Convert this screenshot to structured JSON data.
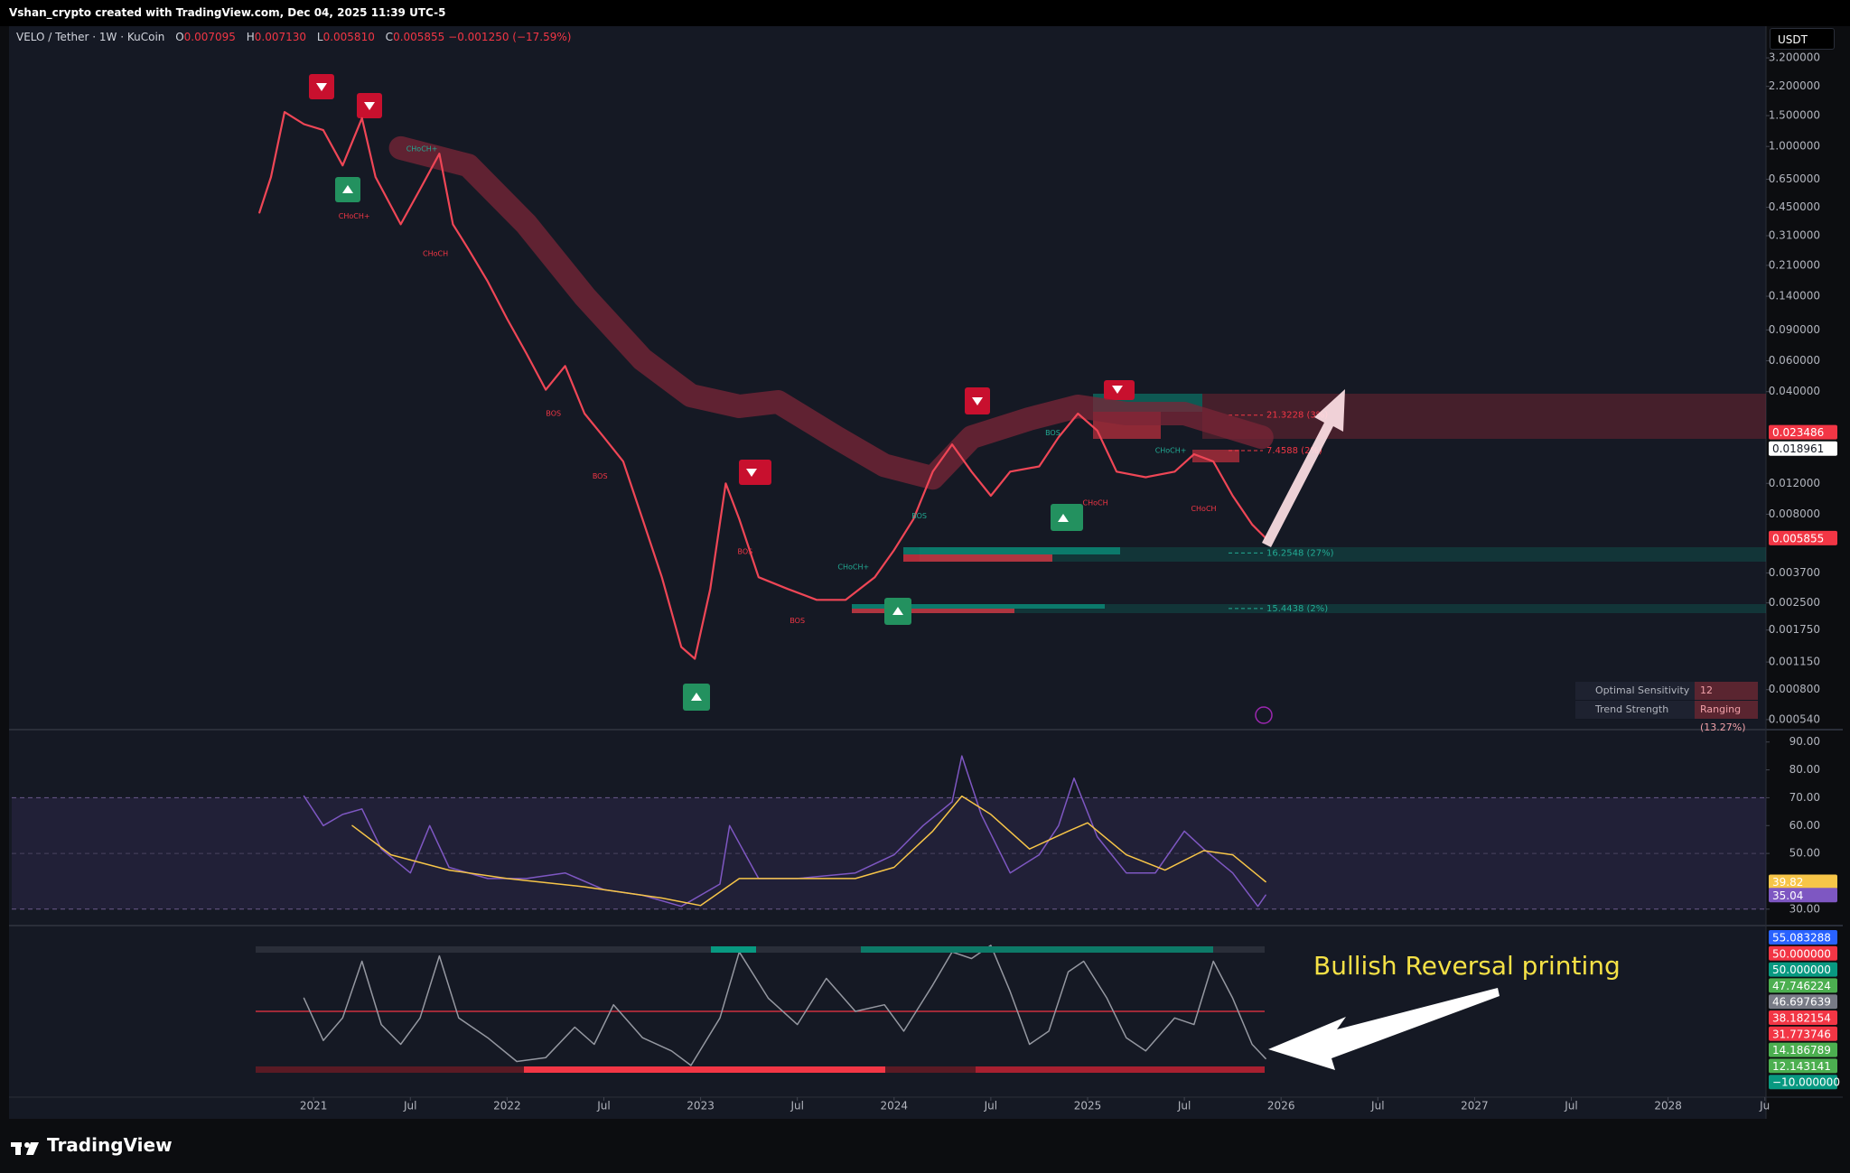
{
  "header": {
    "attribution": "Vshan_crypto created with TradingView.com, Dec 04, 2025 11:39 UTC-5",
    "symbol": "VELO / Tether · 1W · KuCoin",
    "ohlc": [
      {
        "key": "O",
        "value": "0.007095"
      },
      {
        "key": "H",
        "value": "0.007130"
      },
      {
        "key": "L",
        "value": "0.005810"
      },
      {
        "key": "C",
        "value": "0.005855"
      }
    ],
    "change": "−0.001250 (−17.59%)",
    "currency": "USDT"
  },
  "chart_data": [
    {
      "type": "line",
      "log_scale": true,
      "xlim": [
        2019.44,
        2028.506
      ],
      "ylim": [
        0.000479,
        4.85
      ],
      "yticks": [
        {
          "value": 3.2,
          "label": "3.200000"
        },
        {
          "value": 2.2,
          "label": "2.200000"
        },
        {
          "value": 1.5,
          "label": "1.500000"
        },
        {
          "value": 1.0,
          "label": "1.000000"
        },
        {
          "value": 0.65,
          "label": "0.650000"
        },
        {
          "value": 0.45,
          "label": "0.450000"
        },
        {
          "value": 0.31,
          "label": "0.310000"
        },
        {
          "value": 0.21,
          "label": "0.210000"
        },
        {
          "value": 0.14,
          "label": "0.140000"
        },
        {
          "value": 0.09,
          "label": "0.090000"
        },
        {
          "value": 0.06,
          "label": "0.060000"
        },
        {
          "value": 0.04,
          "label": "0.040000"
        },
        {
          "value": 0.012,
          "label": "0.012000"
        },
        {
          "value": 0.008,
          "label": "0.008000"
        },
        {
          "value": 0.0037,
          "label": "0.003700"
        },
        {
          "value": 0.0025,
          "label": "0.002500"
        },
        {
          "value": 0.00175,
          "label": "0.001750"
        },
        {
          "value": 0.00115,
          "label": "0.001150"
        },
        {
          "value": 0.0008,
          "label": "0.000800"
        },
        {
          "value": 0.00054,
          "label": "0.000540"
        }
      ],
      "series": [
        {
          "color": "#7a2637",
          "x": [
            2021.45,
            2021.8,
            2022.1,
            2022.4,
            2022.7,
            2022.95,
            2023.2,
            2023.4,
            2023.7,
            2023.95,
            2024.2,
            2024.4,
            2024.7,
            2024.95,
            2025.2,
            2025.5,
            2025.9
          ],
          "values": [
            0.98,
            0.78,
            0.36,
            0.14,
            0.061,
            0.038,
            0.033,
            0.035,
            0.022,
            0.0152,
            0.0129,
            0.022,
            0.028,
            0.033,
            0.03,
            0.03,
            0.022
          ]
        },
        {
          "color": "#ef4656",
          "x": [
            2020.72,
            2020.78,
            2020.85,
            2020.95,
            2021.05,
            2021.15,
            2021.25,
            2021.32,
            2021.45,
            2021.55,
            2021.65,
            2021.72,
            2021.8,
            2021.9,
            2022.0,
            2022.1,
            2022.2,
            2022.3,
            2022.4,
            2022.5,
            2022.6,
            2022.7,
            2022.8,
            2022.9,
            2022.97,
            2023.05,
            2023.13,
            2023.2,
            2023.3,
            2023.45,
            2023.6,
            2023.75,
            2023.9,
            2024.0,
            2024.1,
            2024.2,
            2024.3,
            2024.4,
            2024.5,
            2024.6,
            2024.75,
            2024.85,
            2024.95,
            2025.05,
            2025.15,
            2025.3,
            2025.45,
            2025.55,
            2025.65,
            2025.75,
            2025.85,
            2025.92
          ],
          "values": [
            0.42,
            0.67,
            1.57,
            1.34,
            1.24,
            0.78,
            1.45,
            0.67,
            0.36,
            0.57,
            0.91,
            0.36,
            0.26,
            0.17,
            0.104,
            0.066,
            0.041,
            0.056,
            0.03,
            0.022,
            0.016,
            0.0075,
            0.0035,
            0.0014,
            0.0012,
            0.003,
            0.012,
            0.0075,
            0.0035,
            0.003,
            0.0026,
            0.0026,
            0.0035,
            0.005,
            0.0075,
            0.014,
            0.02,
            0.014,
            0.0102,
            0.014,
            0.015,
            0.022,
            0.03,
            0.024,
            0.014,
            0.013,
            0.014,
            0.0176,
            0.016,
            0.0102,
            0.007,
            0.005855
          ]
        }
      ],
      "last_value_tags": [
        {
          "value": 0.023486,
          "label": "0.023486",
          "color": "#f23645"
        },
        {
          "value": 0.018961,
          "label": "0.018961",
          "color": "#ffffff"
        },
        {
          "value": 0.005855,
          "label": "0.005855",
          "color": "#f23645"
        }
      ],
      "levels": [
        {
          "price": 0.0294,
          "label": "21.3228 (3%)",
          "color": "#f23645"
        },
        {
          "price": 0.01845,
          "label": "7.4588 (2%)",
          "color": "#f23645"
        },
        {
          "price": 0.00481,
          "label": "16.2548 (27%)",
          "color": "#22ab94"
        },
        {
          "price": 0.00232,
          "label": "15.4438 (2%)",
          "color": "#22ab94"
        }
      ],
      "annotations": [
        {
          "text": "CHoCH+",
          "x": 2021.21,
          "price": 0.4,
          "color": "#f23645"
        },
        {
          "text": "CHoCH+",
          "x": 2021.56,
          "price": 0.97,
          "color": "#22ab94"
        },
        {
          "text": "CHoCH",
          "x": 2021.63,
          "price": 0.245,
          "color": "#f23645"
        },
        {
          "text": "BOS",
          "x": 2022.24,
          "price": 0.03,
          "color": "#f23645"
        },
        {
          "text": "BOS",
          "x": 2022.48,
          "price": 0.0132,
          "color": "#f23645"
        },
        {
          "text": "BOS",
          "x": 2023.23,
          "price": 0.0049,
          "color": "#f23645"
        },
        {
          "text": "BOS",
          "x": 2023.5,
          "price": 0.00197,
          "color": "#f23645"
        },
        {
          "text": "CHoCH+",
          "x": 2023.79,
          "price": 0.004,
          "color": "#22ab94"
        },
        {
          "text": "BOS",
          "x": 2024.13,
          "price": 0.0078,
          "color": "#22ab94"
        },
        {
          "text": "BOS",
          "x": 2024.82,
          "price": 0.0233,
          "color": "#22ab94"
        },
        {
          "text": "CHoCH",
          "x": 2025.04,
          "price": 0.0093,
          "color": "#f23645"
        },
        {
          "text": "CHoCH+",
          "x": 2025.43,
          "price": 0.0185,
          "color": "#22ab94"
        },
        {
          "text": "CHoCH",
          "x": 2025.6,
          "price": 0.0086,
          "color": "#f23645"
        }
      ]
    },
    {
      "type": "line",
      "xlim": [
        2019.44,
        2028.506
      ],
      "ylim": [
        24.1,
        93.8
      ],
      "yticks": [
        {
          "value": 90,
          "label": "90.00"
        },
        {
          "value": 80,
          "label": "80.00"
        },
        {
          "value": 70,
          "label": "70.00"
        },
        {
          "value": 60,
          "label": "60.00"
        },
        {
          "value": 50,
          "label": "50.00"
        },
        {
          "value": 30,
          "label": "30.00"
        }
      ],
      "band": [
        30,
        70
      ],
      "midline": 50,
      "series": [
        {
          "color": "#7e57c2",
          "x": [
            2020.95,
            2021.05,
            2021.15,
            2021.25,
            2021.35,
            2021.5,
            2021.6,
            2021.7,
            2021.9,
            2022.1,
            2022.3,
            2022.5,
            2022.7,
            2022.9,
            2023.1,
            2023.15,
            2023.3,
            2023.5,
            2023.8,
            2024.0,
            2024.15,
            2024.3,
            2024.35,
            2024.45,
            2024.6,
            2024.75,
            2024.85,
            2024.93,
            2025.05,
            2025.2,
            2025.35,
            2025.5,
            2025.6,
            2025.75,
            2025.88,
            2025.92
          ],
          "values": [
            70.6,
            60,
            64,
            66,
            51.6,
            43,
            60,
            45,
            41,
            41,
            43,
            37,
            35,
            31,
            39,
            60,
            41,
            41,
            43,
            49.5,
            60,
            68.5,
            85,
            64,
            43,
            49.5,
            60,
            77,
            56,
            43,
            43,
            58,
            51.6,
            43,
            31,
            35.04
          ]
        },
        {
          "color": "#f7c548",
          "x": [
            2021.2,
            2021.4,
            2021.7,
            2022.0,
            2022.4,
            2022.8,
            2023.0,
            2023.2,
            2023.5,
            2023.8,
            2024.0,
            2024.2,
            2024.35,
            2024.5,
            2024.7,
            2024.9,
            2025.0,
            2025.2,
            2025.4,
            2025.6,
            2025.75,
            2025.92
          ],
          "values": [
            60,
            49.5,
            44,
            41,
            38,
            34,
            31.3,
            41,
            41,
            41,
            45,
            58,
            70.6,
            64,
            51.6,
            58,
            61,
            49.5,
            44,
            51,
            49.5,
            39.82
          ]
        }
      ],
      "last_value_tags": [
        {
          "value": 39.82,
          "color": "#f7c548"
        },
        {
          "value": 35.04,
          "color": "#7e57c2"
        }
      ]
    },
    {
      "type": "line",
      "xlim": [
        2019.44,
        2028.506
      ],
      "ylim": [
        -15,
        115
      ],
      "hline": 50,
      "xticks": [
        {
          "value": 2021.0,
          "label": "2021"
        },
        {
          "value": 2021.5,
          "label": "Jul"
        },
        {
          "value": 2022.0,
          "label": "2022"
        },
        {
          "value": 2022.5,
          "label": "Jul"
        },
        {
          "value": 2023.0,
          "label": "2023"
        },
        {
          "value": 2023.5,
          "label": "Jul"
        },
        {
          "value": 2024.0,
          "label": "2024"
        },
        {
          "value": 2024.5,
          "label": "Jul"
        },
        {
          "value": 2025.0,
          "label": "2025"
        },
        {
          "value": 2025.5,
          "label": "Jul"
        },
        {
          "value": 2026.0,
          "label": "2026"
        },
        {
          "value": 2026.5,
          "label": "Jul"
        },
        {
          "value": 2027.0,
          "label": "2027"
        },
        {
          "value": 2027.5,
          "label": "Jul"
        },
        {
          "value": 2028.0,
          "label": "2028"
        },
        {
          "value": 2028.5,
          "label": "Ju"
        }
      ],
      "series": [
        {
          "color": "#9598a1",
          "x": [
            2020.95,
            2021.05,
            2021.15,
            2021.25,
            2021.35,
            2021.45,
            2021.55,
            2021.65,
            2021.75,
            2021.9,
            2022.05,
            2022.2,
            2022.35,
            2022.45,
            2022.55,
            2022.7,
            2022.85,
            2022.95,
            2023.1,
            2023.2,
            2023.35,
            2023.5,
            2023.65,
            2023.8,
            2023.95,
            2024.05,
            2024.2,
            2024.3,
            2024.4,
            2024.5,
            2024.6,
            2024.7,
            2024.8,
            2024.9,
            2024.98,
            2025.1,
            2025.2,
            2025.3,
            2025.45,
            2025.55,
            2025.65,
            2025.75,
            2025.85,
            2025.92
          ],
          "values": [
            60,
            28,
            45,
            88,
            40,
            25,
            45,
            92,
            45,
            30,
            12,
            15,
            38,
            25,
            55,
            30,
            20,
            9,
            45,
            95,
            60,
            40,
            75,
            50,
            55,
            35,
            70,
            95,
            90,
            100,
            65,
            25,
            35,
            80,
            88,
            60,
            30,
            20,
            45,
            40,
            88,
            60,
            25,
            14.186789
          ]
        }
      ],
      "last_value_tags": [
        {
          "value": 55.083288,
          "label": "55.083288",
          "color": "#2962ff"
        },
        {
          "value": 50,
          "label": "50.000000",
          "color": "#f23645"
        },
        {
          "value": 50,
          "label": "50.000000",
          "color": "#089981"
        },
        {
          "value": 47.746224,
          "label": "47.746224",
          "color": "#4caf50"
        },
        {
          "value": 46.697639,
          "label": "46.697639",
          "color": "#787b86"
        },
        {
          "value": 38.182154,
          "label": "38.182154",
          "color": "#f23645"
        },
        {
          "value": 31.773746,
          "label": "31.773746",
          "color": "#f23645"
        },
        {
          "value": 14.186789,
          "label": "14.186789",
          "color": "#4caf50"
        },
        {
          "value": 12.143141,
          "label": "12.143141",
          "color": "#4caf50"
        },
        {
          "value": -10,
          "label": "−10.000000",
          "color": "#089981"
        }
      ]
    }
  ],
  "info_table": {
    "rows": [
      [
        "Optimal Sensitivity",
        "12"
      ],
      [
        "Trend Strength",
        "Ranging (13.27%)"
      ]
    ]
  },
  "annotation": "Bullish Reversal printing",
  "footer": "TradingView"
}
